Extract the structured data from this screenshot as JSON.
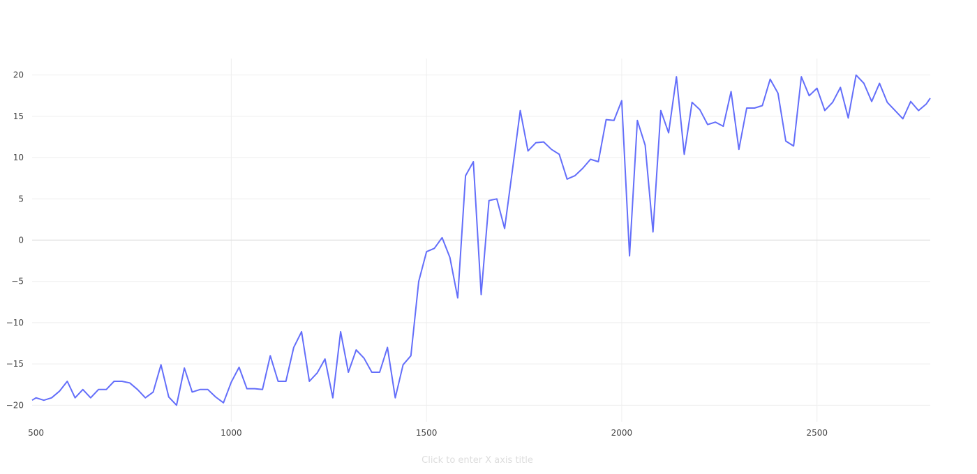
{
  "chart_data": {
    "type": "line",
    "xlabel": "Click to enter X axis title",
    "ylabel": "",
    "xlim": [
      490,
      2790
    ],
    "ylim": [
      -22,
      22
    ],
    "x_ticks": [
      500,
      1000,
      1500,
      2000,
      2500
    ],
    "y_ticks": [
      20,
      15,
      10,
      5,
      0,
      -5,
      -10,
      -15,
      -20
    ],
    "grid": true,
    "colors": {
      "line": "#636efa",
      "grid": "#eeeeee",
      "zero": "#e2e2e2"
    },
    "series": [
      {
        "x": [
          490,
          500,
          520,
          540,
          560,
          580,
          600,
          620,
          640,
          660,
          680,
          700,
          720,
          740,
          760,
          780,
          800,
          820,
          840,
          860,
          880,
          900,
          920,
          940,
          960,
          980,
          1000,
          1020,
          1040,
          1060,
          1080,
          1100,
          1120,
          1140,
          1160,
          1180,
          1200,
          1220,
          1240,
          1260,
          1280,
          1300,
          1320,
          1340,
          1360,
          1380,
          1400,
          1420,
          1440,
          1460,
          1480,
          1500,
          1520,
          1540,
          1560,
          1580,
          1600,
          1620,
          1640,
          1660,
          1680,
          1700,
          1720,
          1740,
          1760,
          1780,
          1800,
          1820,
          1840,
          1860,
          1880,
          1900,
          1920,
          1940,
          1960,
          1980,
          2000,
          2020,
          2040,
          2060,
          2080,
          2100,
          2120,
          2140,
          2160,
          2180,
          2200,
          2220,
          2240,
          2260,
          2280,
          2300,
          2320,
          2340,
          2360,
          2380,
          2400,
          2420,
          2440,
          2460,
          2480,
          2500,
          2520,
          2540,
          2560,
          2580,
          2600,
          2620,
          2640,
          2660,
          2680,
          2700,
          2720,
          2740,
          2760,
          2780,
          2790
        ],
        "values": [
          -19.4,
          -19.1,
          -19.4,
          -19.1,
          -18.3,
          -17.1,
          -19.1,
          -18.1,
          -19.1,
          -18.1,
          -18.1,
          -17.1,
          -17.1,
          -17.3,
          -18.1,
          -19.1,
          -18.4,
          -15.1,
          -19.0,
          -20.0,
          -15.5,
          -18.4,
          -18.1,
          -18.1,
          -19.0,
          -19.7,
          -17.2,
          -15.4,
          -18.0,
          -18.0,
          -18.1,
          -14.0,
          -17.1,
          -17.1,
          -13.0,
          -11.1,
          -17.1,
          -16.1,
          -14.4,
          -19.1,
          -11.1,
          -16.0,
          -13.3,
          -14.3,
          -16.0,
          -16.0,
          -13.0,
          -19.1,
          -15.1,
          -14.0,
          -5.0,
          -1.4,
          -1.0,
          0.3,
          -2.1,
          -7.0,
          7.8,
          9.5,
          -6.6,
          4.8,
          5.0,
          1.4,
          8.5,
          15.7,
          10.8,
          11.8,
          11.9,
          11.0,
          10.4,
          7.4,
          7.8,
          8.7,
          9.8,
          9.5,
          14.6,
          14.5,
          16.9,
          -1.9,
          14.5,
          11.5,
          1.0,
          15.7,
          13.0,
          19.8,
          10.4,
          16.7,
          15.8,
          14.0,
          14.3,
          13.8,
          18.0,
          11.0,
          16.0,
          16.0,
          16.3,
          19.5,
          17.8,
          12.0,
          11.4,
          19.8,
          17.5,
          18.4,
          15.7,
          16.7,
          18.5,
          14.8,
          20.0,
          19.0,
          16.8,
          19.0,
          16.7,
          15.7,
          14.7,
          16.8,
          15.7,
          16.5,
          17.2
        ]
      }
    ]
  }
}
